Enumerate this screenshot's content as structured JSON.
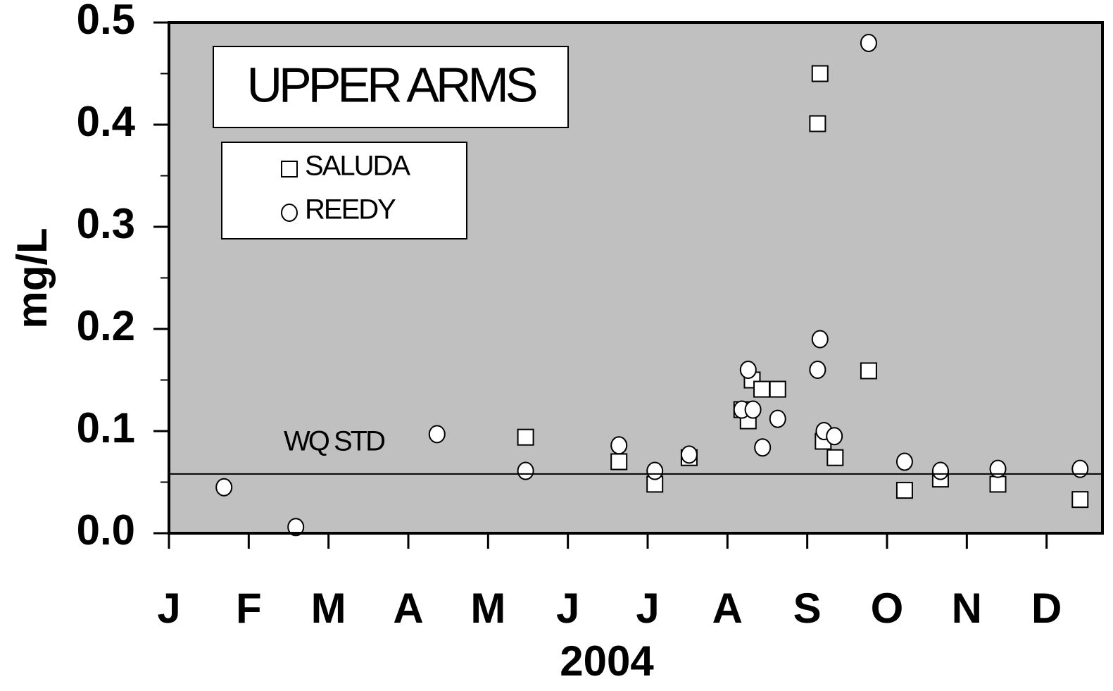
{
  "chart_data": {
    "type": "scatter",
    "title": "UPPER ARMS",
    "xlabel": "2004",
    "ylabel": "mg/L",
    "xlim": [
      0,
      11.7
    ],
    "xticks": [
      {
        "value": 0,
        "label": "J"
      },
      {
        "value": 1,
        "label": "F"
      },
      {
        "value": 2,
        "label": "M"
      },
      {
        "value": 3,
        "label": "A"
      },
      {
        "value": 4,
        "label": "M"
      },
      {
        "value": 5,
        "label": "J"
      },
      {
        "value": 6,
        "label": "J"
      },
      {
        "value": 7,
        "label": "A"
      },
      {
        "value": 8,
        "label": "S"
      },
      {
        "value": 9,
        "label": "O"
      },
      {
        "value": 10,
        "label": "N"
      },
      {
        "value": 11,
        "label": "D"
      }
    ],
    "ylim": [
      0,
      0.5
    ],
    "yticks": [
      {
        "value": 0,
        "label": "0.0"
      },
      0.1,
      0.2,
      0.3,
      0.4,
      0.5
    ],
    "yminorticks": [
      0.05,
      0.15,
      0.25,
      0.35,
      0.45
    ],
    "background": "#c0c0c0",
    "reference_line": {
      "label": "WQ STD",
      "value": 0.058
    },
    "series": [
      {
        "name": "SALUDA",
        "marker": "square",
        "color": "#ffffff",
        "x": [
          4.47,
          5.64,
          6.09,
          6.52,
          7.18,
          7.26,
          7.31,
          7.43,
          7.63,
          8.13,
          8.16,
          8.2,
          8.35,
          8.77,
          9.22,
          9.67,
          10.39,
          11.42
        ],
        "values": [
          0.094,
          0.07,
          0.048,
          0.074,
          0.121,
          0.11,
          0.15,
          0.141,
          0.141,
          0.401,
          0.45,
          0.09,
          0.074,
          0.159,
          0.042,
          0.053,
          0.048,
          0.033
        ]
      },
      {
        "name": "REEDY",
        "marker": "circle",
        "color": "#ffffff",
        "x": [
          0.69,
          1.59,
          3.36,
          4.47,
          5.64,
          6.09,
          6.52,
          7.18,
          7.26,
          7.32,
          7.44,
          7.63,
          8.13,
          8.16,
          8.21,
          8.34,
          8.77,
          9.22,
          9.67,
          10.39,
          11.42
        ],
        "values": [
          0.045,
          0.006,
          0.097,
          0.061,
          0.086,
          0.061,
          0.077,
          0.121,
          0.16,
          0.121,
          0.084,
          0.112,
          0.16,
          0.19,
          0.1,
          0.095,
          0.48,
          0.07,
          0.061,
          0.063,
          0.063
        ]
      }
    ]
  }
}
